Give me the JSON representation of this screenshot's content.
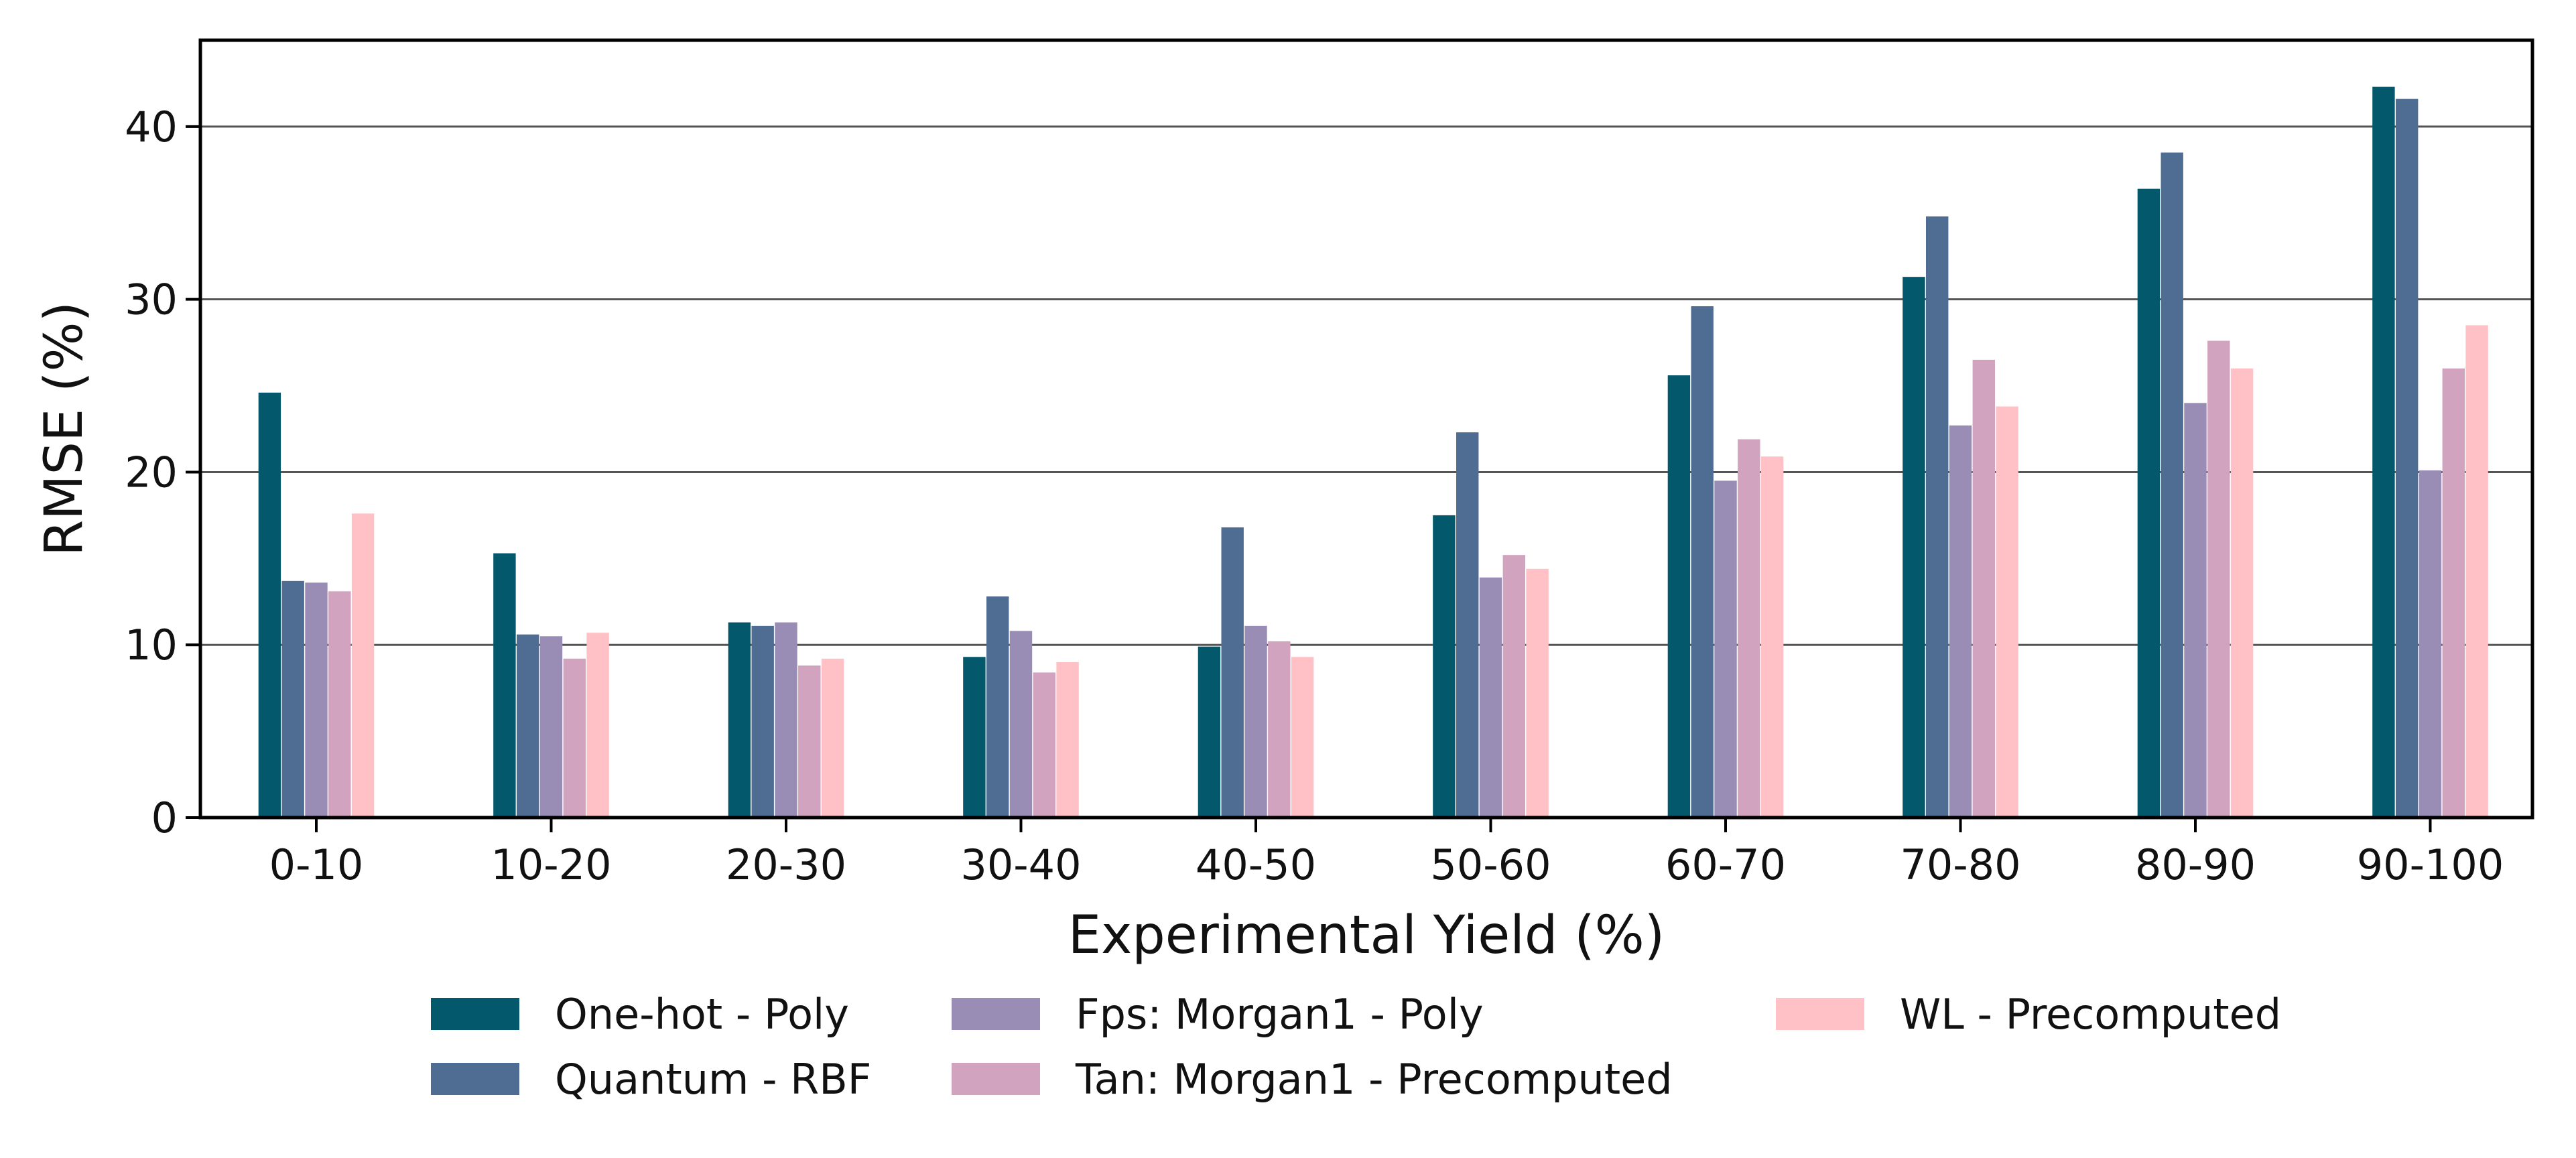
{
  "chart_data": {
    "type": "bar",
    "title": "",
    "xlabel": "Experimental Yield (%)",
    "ylabel": "RMSE (%)",
    "ylim": [
      0,
      45
    ],
    "yticks": [
      0,
      10,
      20,
      30,
      40
    ],
    "grid": "horizontal",
    "legend_placement": "bottom",
    "categories": [
      "0-10",
      "10-20",
      "20-30",
      "30-40",
      "40-50",
      "50-60",
      "60-70",
      "70-80",
      "80-90",
      "90-100"
    ],
    "series": [
      {
        "name": "One-hot - Poly",
        "color": "#03586b",
        "values": [
          24.6,
          15.3,
          11.3,
          9.3,
          9.9,
          17.5,
          25.6,
          31.3,
          36.4,
          42.3
        ]
      },
      {
        "name": "Quantum - RBF",
        "color": "#4f6d92",
        "values": [
          13.7,
          10.6,
          11.1,
          12.8,
          16.8,
          22.3,
          29.6,
          34.8,
          38.5,
          41.6
        ]
      },
      {
        "name": "Fps: Morgan1 - Poly",
        "color": "#9a8db5",
        "values": [
          13.6,
          10.5,
          11.3,
          10.8,
          11.1,
          13.9,
          19.5,
          22.7,
          24.0,
          20.1
        ]
      },
      {
        "name": "Tan: Morgan1 - Precomputed",
        "color": "#d1a3bf",
        "values": [
          13.1,
          9.2,
          8.8,
          8.4,
          10.2,
          15.2,
          21.9,
          26.5,
          27.6,
          26.0
        ]
      },
      {
        "name": "WL - Precomputed",
        "color": "#ffc1c5",
        "values": [
          17.6,
          10.7,
          9.2,
          9.0,
          9.3,
          14.4,
          20.9,
          23.8,
          26.0,
          28.5
        ]
      }
    ]
  }
}
